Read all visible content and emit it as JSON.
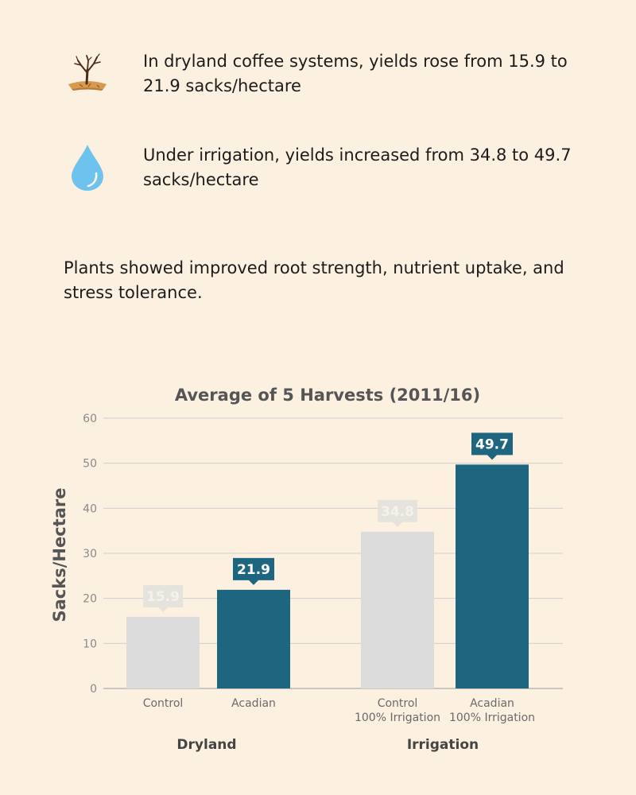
{
  "facts": [
    {
      "icon": "dry-tree-icon",
      "text": "In dryland coffee systems, yields rose from 15.9 to 21.9 sacks/hectare"
    },
    {
      "icon": "water-drop-icon",
      "text": "Under irrigation, yields increased from 34.8 to 49.7 sacks/hectare"
    }
  ],
  "summary": "Plants showed improved root strength, nutrient uptake, and stress tolerance.",
  "colors": {
    "background": "#fcf0e0",
    "control": "#dcdcdc",
    "acadian": "#1e6680",
    "axis_text": "#555555",
    "grid": "#cfcfcf"
  },
  "chart_data": {
    "type": "bar",
    "title": "Average of 5 Harvests (2011/16)",
    "ylabel": "Sacks/Hectare",
    "xlabel": "",
    "ylim": [
      0,
      60
    ],
    "yticks": [
      0,
      10,
      20,
      30,
      40,
      50,
      60
    ],
    "grid": true,
    "groups": [
      {
        "name": "Dryland",
        "bars": [
          {
            "label": [
              "Control"
            ],
            "value": 15.9,
            "series": "Control"
          },
          {
            "label": [
              "Acadian"
            ],
            "value": 21.9,
            "series": "Acadian"
          }
        ]
      },
      {
        "name": "Irrigation",
        "bars": [
          {
            "label": [
              "Control",
              "100% Irrigation"
            ],
            "value": 34.8,
            "series": "Control"
          },
          {
            "label": [
              "Acadian",
              "100% Irrigation"
            ],
            "value": 49.7,
            "series": "Acadian"
          }
        ]
      }
    ]
  }
}
